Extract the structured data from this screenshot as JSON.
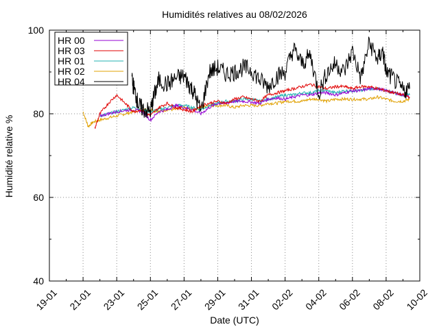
{
  "chart_data": {
    "type": "line",
    "title": "Humidités relatives  au 08/02/2026",
    "xlabel": "Date (UTC)",
    "ylabel": "Humidité relative %",
    "x_ticks": [
      "19-01",
      "21-01",
      "23-01",
      "25-01",
      "27-01",
      "29-01",
      "31-01",
      "02-02",
      "04-02",
      "06-02",
      "08-02",
      "10-02"
    ],
    "x_range_days": [
      0,
      22
    ],
    "ylim": [
      40,
      100
    ],
    "y_ticks": [
      "40",
      "60",
      "80",
      "100"
    ],
    "grid": true,
    "legend_position": "top-left",
    "series": [
      {
        "name": "HR 00",
        "color": "#9400d3",
        "x": [
          3,
          3.5,
          4,
          4.5,
          5,
          5.5,
          6,
          6.5,
          7,
          7.5,
          8,
          8.5,
          9,
          9.5,
          10,
          10.5,
          11,
          11.5,
          12,
          12.5,
          13,
          13.5,
          14,
          14.5,
          15,
          15.5,
          16,
          16.5,
          17,
          17.5,
          18,
          18.5,
          19,
          19.5,
          20,
          20.5,
          21,
          21.4
        ],
        "y": [
          79.5,
          80,
          80.5,
          80.8,
          81,
          80.5,
          78.5,
          80.5,
          81,
          82,
          81.5,
          81,
          80,
          81.5,
          82.5,
          82.5,
          83,
          83,
          82.8,
          82.5,
          83.5,
          83.8,
          83.5,
          84,
          84.5,
          84.5,
          85,
          85,
          84.5,
          85,
          85.5,
          85.5,
          86,
          86,
          85.5,
          85,
          84.5,
          84
        ]
      },
      {
        "name": "HR 03",
        "color": "#e00000",
        "x": [
          2.7,
          3,
          3.5,
          4,
          4.5,
          5,
          5.5,
          6,
          6.5,
          7,
          7.5,
          8,
          8.5,
          9,
          9.5,
          10,
          10.5,
          11,
          11.5,
          12,
          12.5,
          13,
          13.5,
          14,
          14.5,
          15,
          15.5,
          16,
          16.5,
          17,
          17.5,
          18,
          18.5,
          19,
          19.5,
          20,
          20.5,
          21,
          21.4
        ],
        "y": [
          76.5,
          80,
          82.5,
          84.5,
          82.5,
          80.5,
          81,
          79.5,
          81.5,
          82.5,
          81.5,
          81,
          80.5,
          82,
          82.5,
          83,
          82.5,
          83.5,
          84,
          83.5,
          83,
          84.5,
          85,
          85.5,
          86,
          86.5,
          87,
          86.5,
          86,
          86.5,
          86.5,
          86,
          86.5,
          86.5,
          86,
          85.5,
          85,
          84.5,
          84
        ]
      },
      {
        "name": "HR 01",
        "color": "#20b0b0",
        "x": [
          3,
          3.5,
          4,
          4.5,
          5,
          5.5,
          6,
          6.5,
          7,
          7.5,
          8,
          8.5,
          9,
          9.5,
          10,
          10.5,
          11,
          11.5,
          12,
          12.5,
          13,
          13.5,
          14,
          14.5,
          15,
          15.5,
          16,
          16.5,
          17,
          17.5,
          18,
          18.5,
          19,
          19.5,
          20,
          20.5,
          21,
          21.4
        ],
        "y": [
          79.5,
          80,
          80.5,
          81,
          81.5,
          81,
          80.5,
          81,
          81.5,
          82,
          82,
          81.5,
          81,
          82,
          82.5,
          83,
          83,
          83.5,
          83.5,
          83,
          83.5,
          84,
          84.5,
          84.5,
          85,
          85,
          85.5,
          85.5,
          85,
          85.5,
          85.5,
          85.5,
          86,
          86,
          85.5,
          85,
          84.5,
          84.5
        ]
      },
      {
        "name": "HR 02",
        "color": "#e0a000",
        "x": [
          2,
          2.3,
          2.6,
          3,
          3.5,
          4,
          4.5,
          5,
          5.5,
          6,
          6.5,
          7,
          7.5,
          8,
          8.5,
          9,
          9.5,
          10,
          10.5,
          11,
          11.5,
          12,
          12.5,
          13,
          13.5,
          14,
          14.5,
          15,
          15.5,
          16,
          16.5,
          17,
          17.5,
          18,
          18.5,
          19,
          19.5,
          20,
          20.5,
          21,
          21.4
        ],
        "y": [
          80.5,
          77,
          78,
          78.5,
          79,
          79.5,
          80,
          80.5,
          81,
          81,
          80.5,
          81,
          81,
          81.5,
          81,
          81.5,
          82,
          82,
          82,
          81.5,
          82,
          82,
          82,
          82.5,
          82.5,
          83,
          83,
          83,
          83.5,
          83.5,
          83,
          83.5,
          83.5,
          83.5,
          83.5,
          83.5,
          84,
          83.5,
          83,
          83,
          83.5
        ]
      },
      {
        "name": "HR 04",
        "color": "#000000",
        "x": [
          4.9,
          5.1,
          5.3,
          5.6,
          6,
          6.2,
          6.5,
          7,
          7.5,
          8,
          8.3,
          8.6,
          9,
          9.5,
          10,
          10.5,
          11,
          11.5,
          12,
          12.5,
          13,
          13.5,
          14,
          14.5,
          15,
          15.5,
          16,
          16.5,
          17,
          17.5,
          18,
          18.5,
          19,
          19.5,
          19.8,
          20,
          20.5,
          21,
          21.4
        ],
        "y": [
          88,
          85,
          82,
          81,
          80.5,
          84,
          88,
          87,
          88.5,
          89,
          87,
          85,
          80.5,
          90,
          91,
          89.5,
          90,
          91,
          90.5,
          88,
          86.5,
          89,
          90,
          95.5,
          92,
          94,
          85,
          90,
          92,
          90,
          95,
          88.5,
          97,
          93,
          95,
          90,
          88,
          85.5,
          86
        ]
      }
    ]
  }
}
